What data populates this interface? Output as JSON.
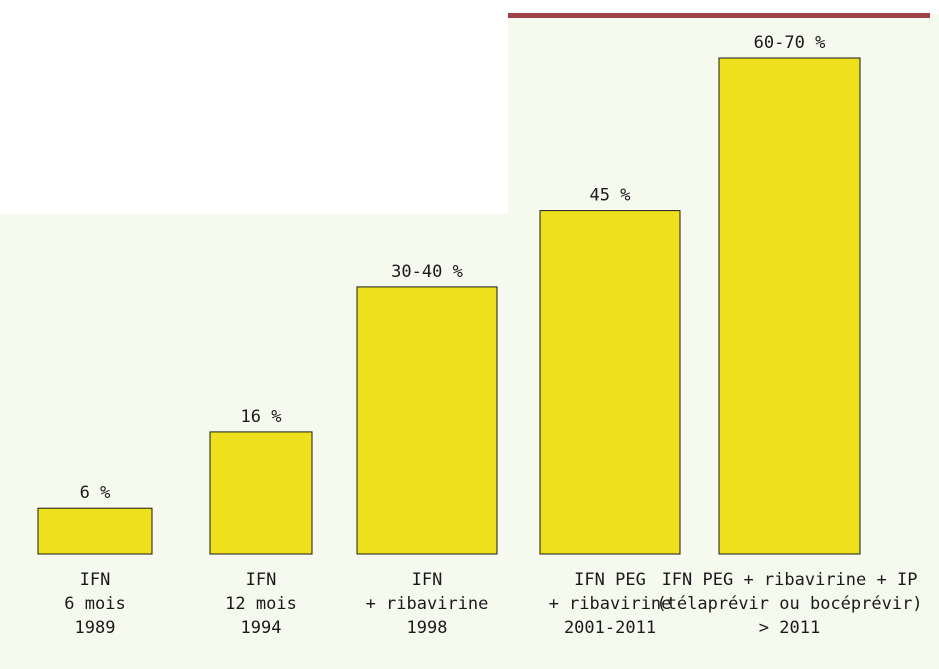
{
  "colors": {
    "background": "#f6f9ee",
    "bar_fill": "#ede01d",
    "bar_stroke": "#1a1a1a",
    "top_rule": "#a0424a"
  },
  "chart_data": {
    "type": "bar",
    "categories": [
      [
        "IFN",
        "6 mois",
        "1989"
      ],
      [
        "IFN",
        "12 mois",
        "1994"
      ],
      [
        "IFN",
        "+ ribavirine",
        "1998"
      ],
      [
        "IFN PEG",
        "+ ribavirine",
        "2001-2011"
      ],
      [
        "IFN PEG + ribavirine + IP",
        "(télaprévir ou bocéprévir)",
        "> 2011"
      ]
    ],
    "values": [
      6,
      16,
      35,
      45,
      65
    ],
    "data_labels": [
      "6 %",
      "16 %",
      "30-40 %",
      "45 %",
      "60-70 %"
    ],
    "title": "",
    "xlabel": "",
    "ylabel": "",
    "ylim": [
      0,
      70
    ],
    "grid": false,
    "legend": "none"
  }
}
